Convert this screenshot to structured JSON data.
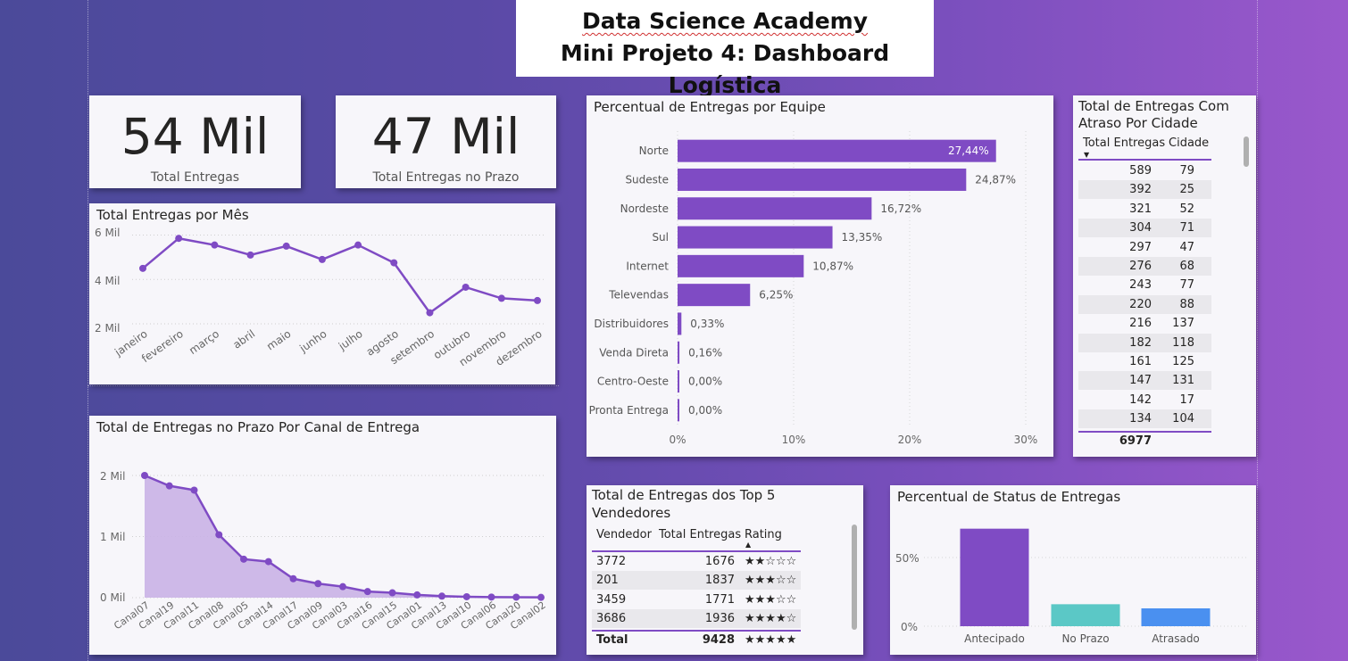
{
  "header": {
    "line1": "Data Science Academy",
    "line2": "Mini Projeto 4: Dashboard Logística"
  },
  "kpis": [
    {
      "value": "54 Mil",
      "label": "Total Entregas"
    },
    {
      "value": "47 Mil",
      "label": "Total Entregas no Prazo"
    }
  ],
  "monthly": {
    "title": "Total Entregas por Mês",
    "y_ticks": [
      "6 Mil",
      "4 Mil",
      "2 Mil"
    ]
  },
  "channel": {
    "title": "Total de Entregas no Prazo Por Canal de Entrega",
    "y_ticks": [
      "2 Mil",
      "1 Mil",
      "0 Mil"
    ]
  },
  "team": {
    "title": "Percentual de Entregas por Equipe",
    "x_ticks": [
      "0%",
      "10%",
      "20%",
      "30%"
    ]
  },
  "city_table": {
    "title_line1": "Total de Entregas Com",
    "title_line2": "Atraso Por Cidade",
    "headers": [
      "Total Entregas",
      "Cidade"
    ],
    "rows": [
      [
        "589",
        "79"
      ],
      [
        "392",
        "25"
      ],
      [
        "321",
        "52"
      ],
      [
        "304",
        "71"
      ],
      [
        "297",
        "47"
      ],
      [
        "276",
        "68"
      ],
      [
        "243",
        "77"
      ],
      [
        "220",
        "88"
      ],
      [
        "216",
        "137"
      ],
      [
        "182",
        "118"
      ],
      [
        "161",
        "125"
      ],
      [
        "147",
        "131"
      ],
      [
        "142",
        "17"
      ],
      [
        "134",
        "104"
      ]
    ],
    "total": "6977"
  },
  "sellers": {
    "title_line1": "Total de Entregas dos Top 5",
    "title_line2": "Vendedores",
    "headers": [
      "Vendedor",
      "Total Entregas",
      "Rating"
    ],
    "rows": [
      [
        "3772",
        "1676",
        "★★☆☆☆"
      ],
      [
        "201",
        "1837",
        "★★★☆☆"
      ],
      [
        "3459",
        "1771",
        "★★★☆☆"
      ],
      [
        "3686",
        "1936",
        "★★★★☆"
      ]
    ],
    "total_label": "Total",
    "total_value": "9428",
    "total_rating": "★★★★★"
  },
  "status": {
    "title": "Percentual de Status de Entregas",
    "y_ticks": [
      "50%",
      "0%"
    ]
  },
  "colors": {
    "purple": "#7f4bc4",
    "teal": "#5bc8c6",
    "blue": "#4a90f0",
    "area": "#c9b2e6"
  },
  "chart_data": [
    {
      "type": "line",
      "title": "Total Entregas por Mês",
      "x": [
        "janeiro",
        "fevereiro",
        "março",
        "abril",
        "maio",
        "junho",
        "julho",
        "agosto",
        "setembro",
        "outubro",
        "novembro",
        "dezembro"
      ],
      "values": [
        4500,
        5850,
        5550,
        5100,
        5500,
        4900,
        5550,
        4750,
        2500,
        3650,
        3150,
        3050
      ],
      "ylim": [
        1800,
        6100
      ],
      "grid": true
    },
    {
      "type": "area",
      "title": "Total de Entregas no Prazo Por Canal de Entrega",
      "x": [
        "Canal07",
        "Canal19",
        "Canal11",
        "Canal08",
        "Canal05",
        "Canal14",
        "Canal17",
        "Canal09",
        "Canal03",
        "Canal16",
        "Canal15",
        "Canal01",
        "Canal13",
        "Canal10",
        "Canal06",
        "Canal20",
        "Canal02"
      ],
      "values": [
        2000,
        1830,
        1760,
        1030,
        630,
        590,
        310,
        230,
        180,
        100,
        80,
        45,
        25,
        15,
        10,
        8,
        5
      ],
      "ylim": [
        0,
        2000
      ],
      "grid": true
    },
    {
      "type": "bar",
      "orientation": "horizontal",
      "title": "Percentual de Entregas por Equipe",
      "categories": [
        "Norte",
        "Sudeste",
        "Nordeste",
        "Sul",
        "Internet",
        "Televendas",
        "Distribuidores",
        "Venda Direta",
        "Centro-Oeste",
        "Pronta Entrega"
      ],
      "values": [
        27.44,
        24.87,
        16.72,
        13.35,
        10.87,
        6.25,
        0.33,
        0.16,
        0.0,
        0.0
      ],
      "labels": [
        "27,44%",
        "24,87%",
        "16,72%",
        "13,35%",
        "10,87%",
        "6,25%",
        "0,33%",
        "0,16%",
        "0,00%",
        "0,00%"
      ],
      "xlim": [
        0,
        30
      ]
    },
    {
      "type": "bar",
      "title": "Percentual de Status de Entregas",
      "categories": [
        "Antecipado",
        "No Prazo",
        "Atrasado"
      ],
      "values": [
        71,
        16,
        13
      ],
      "colors": [
        "#7f4bc4",
        "#5bc8c6",
        "#4a90f0"
      ],
      "ylim": [
        0,
        70
      ]
    }
  ]
}
